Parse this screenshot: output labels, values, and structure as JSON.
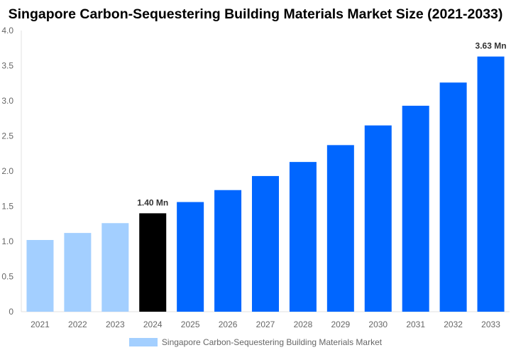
{
  "chart_data": {
    "type": "bar",
    "title": "Singapore Carbon-Sequestering Building Materials Market Size (2021-2033)",
    "categories": [
      "2021",
      "2022",
      "2023",
      "2024",
      "2025",
      "2026",
      "2027",
      "2028",
      "2029",
      "2030",
      "2031",
      "2032",
      "2033"
    ],
    "series": [
      {
        "name": "Singapore Carbon-Sequestering Building Materials Market",
        "values": [
          1.02,
          1.12,
          1.26,
          1.4,
          1.56,
          1.73,
          1.93,
          2.13,
          2.37,
          2.65,
          2.93,
          3.26,
          3.63
        ]
      }
    ],
    "bar_colors": [
      "#a3cfff",
      "#a3cfff",
      "#a3cfff",
      "#000000",
      "#0066ff",
      "#0066ff",
      "#0066ff",
      "#0066ff",
      "#0066ff",
      "#0066ff",
      "#0066ff",
      "#0066ff",
      "#0066ff"
    ],
    "data_labels": {
      "3": "1.40 Mn",
      "12": "3.63 Mn"
    },
    "ylim": [
      0,
      4.0
    ],
    "yticks": [
      "0",
      "0.5",
      "1.0",
      "1.5",
      "2.0",
      "2.5",
      "3.0",
      "3.5",
      "4.0"
    ],
    "xlabel": "",
    "ylabel": "",
    "grid": false,
    "legend_position": "bottom"
  }
}
